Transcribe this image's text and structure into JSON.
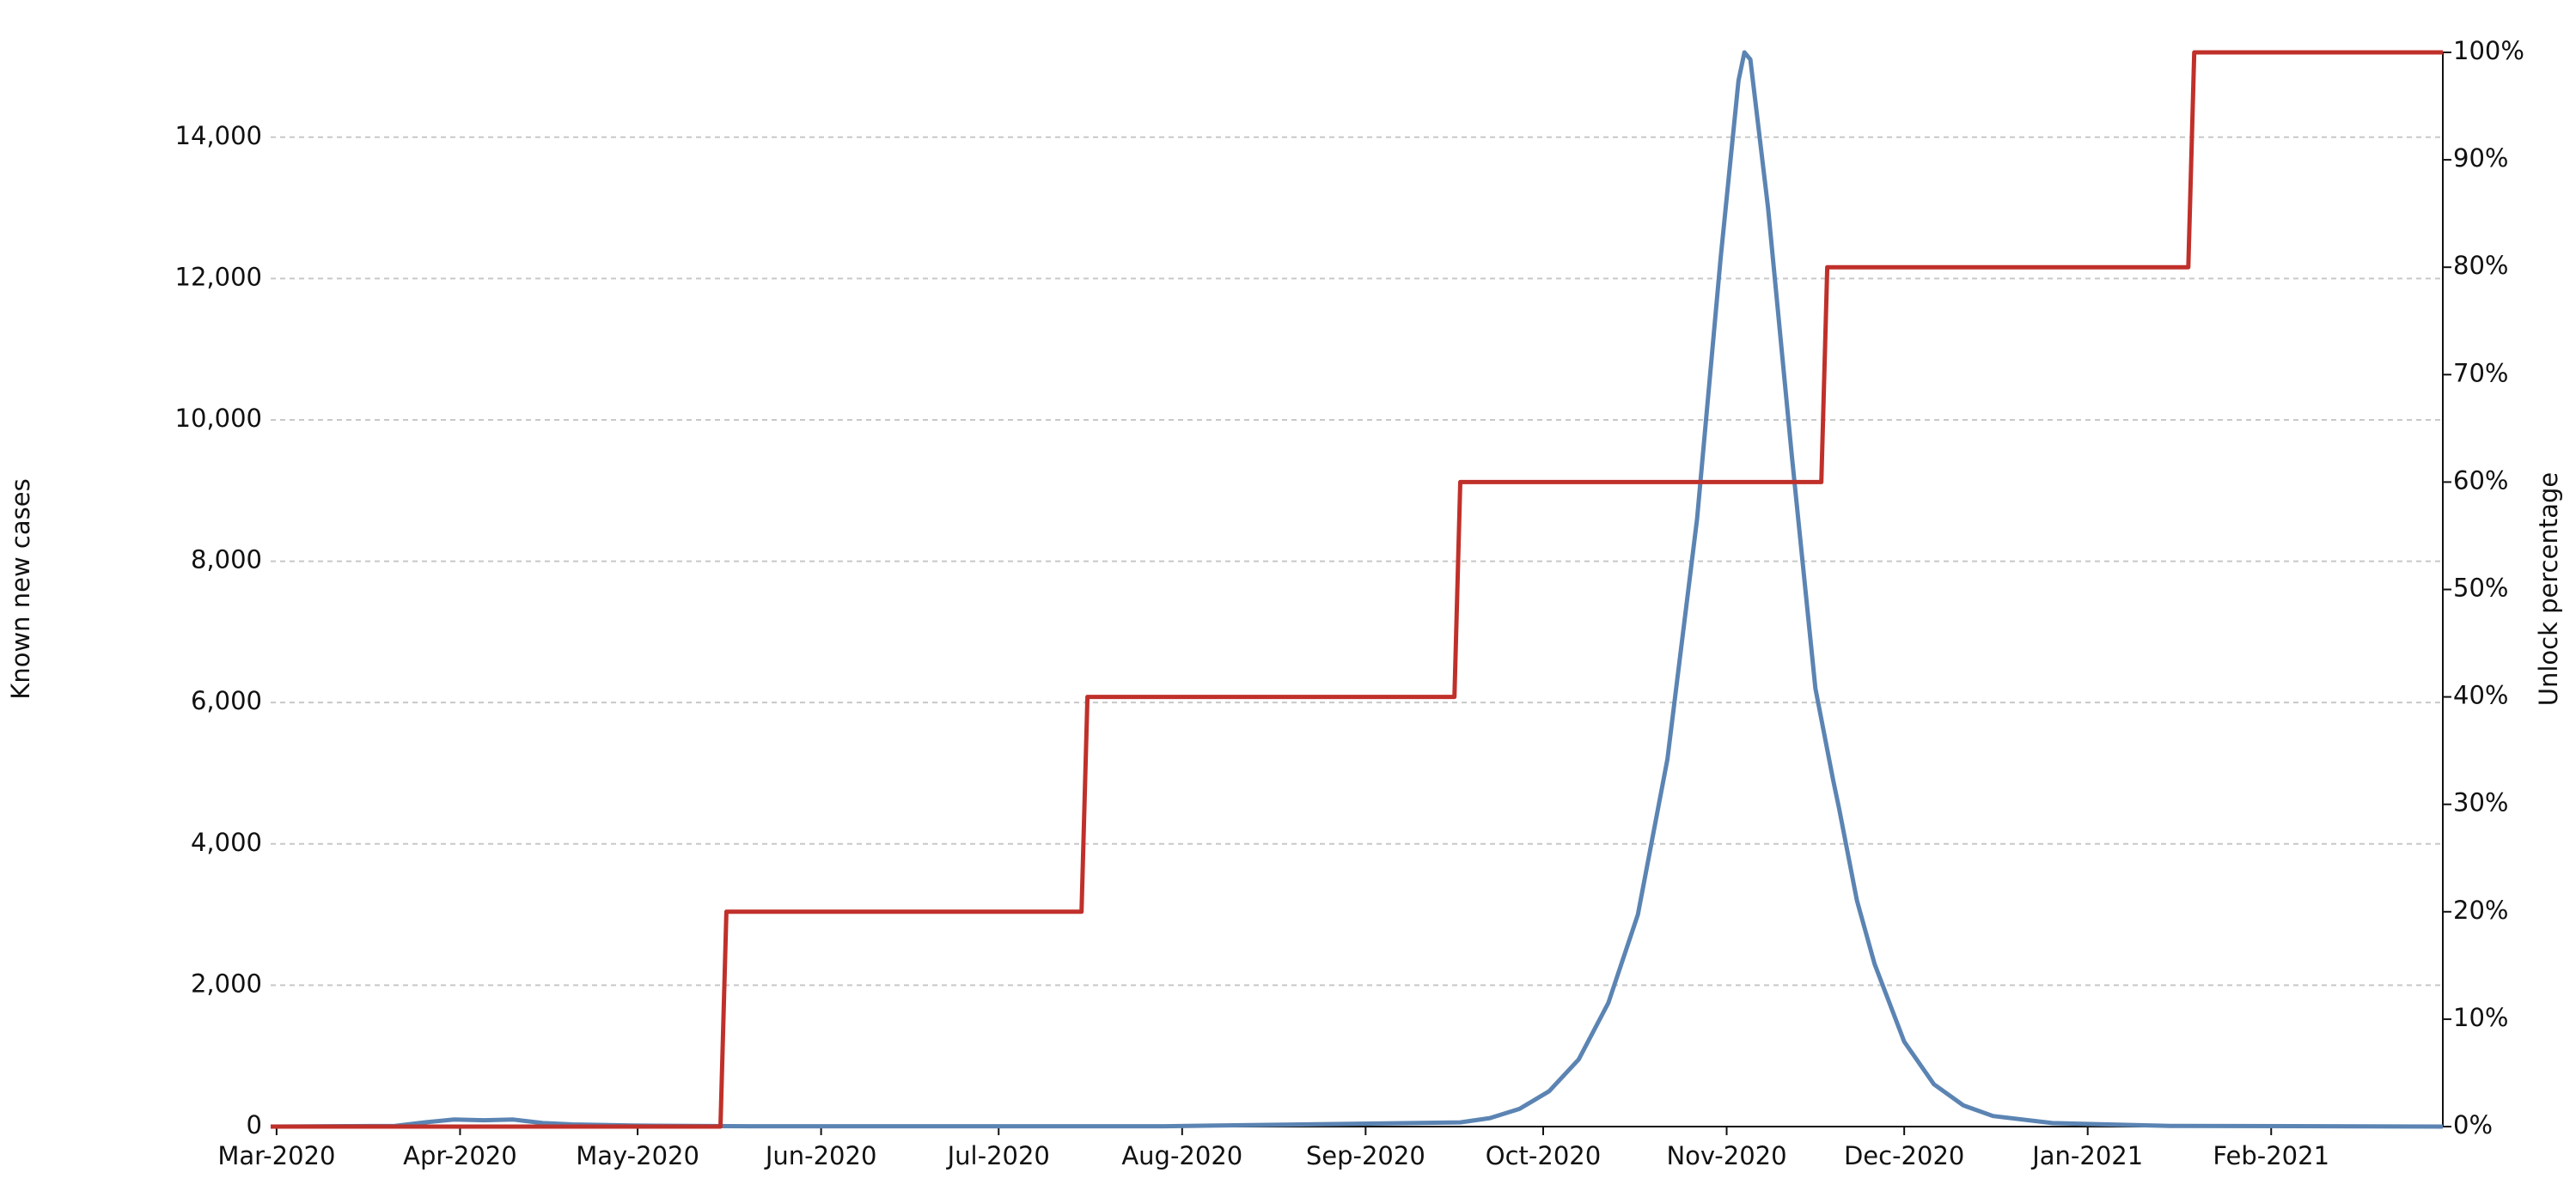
{
  "chart_data": {
    "type": "line",
    "y_label": "Known new cases",
    "y2_label": "Unlock percentage",
    "xlim": [
      -1,
      366
    ],
    "xticks": [
      {
        "value": 0,
        "label": "Mar-2020"
      },
      {
        "value": 31,
        "label": "Apr-2020"
      },
      {
        "value": 61,
        "label": "May-2020"
      },
      {
        "value": 92,
        "label": "Jun-2020"
      },
      {
        "value": 122,
        "label": "Jul-2020"
      },
      {
        "value": 153,
        "label": "Aug-2020"
      },
      {
        "value": 184,
        "label": "Sep-2020"
      },
      {
        "value": 214,
        "label": "Oct-2020"
      },
      {
        "value": 245,
        "label": "Nov-2020"
      },
      {
        "value": 275,
        "label": "Dec-2020"
      },
      {
        "value": 306,
        "label": "Jan-2021"
      },
      {
        "value": 337,
        "label": "Feb-2021"
      }
    ],
    "ylim": [
      0,
      15200
    ],
    "yticks": [
      0,
      {
        "value": 2000,
        "label": "2,000"
      },
      {
        "value": 4000,
        "label": "4,000"
      },
      {
        "value": 6000,
        "label": "6,000"
      },
      {
        "value": 8000,
        "label": "8,000"
      },
      {
        "value": 10000,
        "label": "10,000"
      },
      {
        "value": 12000,
        "label": "12,000"
      },
      {
        "value": 14000,
        "label": "14,000"
      }
    ],
    "y2lim": [
      0,
      100
    ],
    "y2ticks": [
      {
        "value": 0,
        "label": "0%"
      },
      {
        "value": 10,
        "label": "10%"
      },
      {
        "value": 20,
        "label": "20%"
      },
      {
        "value": 30,
        "label": "30%"
      },
      {
        "value": 40,
        "label": "40%"
      },
      {
        "value": 50,
        "label": "50%"
      },
      {
        "value": 60,
        "label": "60%"
      },
      {
        "value": 70,
        "label": "70%"
      },
      {
        "value": 80,
        "label": "80%"
      },
      {
        "value": 90,
        "label": "90%"
      },
      {
        "value": 100,
        "label": "100%"
      }
    ],
    "grid": true,
    "series": [
      {
        "color": "#5b84b3",
        "axis": "y",
        "x": [
          -1,
          20,
          25,
          30,
          35,
          40,
          45,
          50,
          60,
          80,
          150,
          200,
          205,
          210,
          215,
          220,
          225,
          230,
          235,
          240,
          244,
          247,
          248,
          249,
          252,
          256,
          260,
          263,
          264,
          267,
          270,
          275,
          280,
          285,
          290,
          300,
          320,
          366
        ],
        "values": [
          0,
          10,
          60,
          100,
          90,
          100,
          50,
          30,
          15,
          5,
          5,
          60,
          120,
          250,
          500,
          950,
          1750,
          3000,
          5200,
          8600,
          12300,
          14800,
          15200,
          15100,
          13000,
          9500,
          6200,
          4900,
          4500,
          3200,
          2300,
          1200,
          600,
          300,
          150,
          50,
          10,
          0
        ]
      },
      {
        "color": "#c0302a",
        "axis": "y2",
        "x": [
          -1,
          75,
          76,
          136,
          137,
          199,
          200,
          261,
          262,
          323,
          324,
          366
        ],
        "values": [
          0,
          0,
          20,
          20,
          40,
          40,
          60,
          60,
          80,
          80,
          100,
          100
        ]
      }
    ]
  }
}
